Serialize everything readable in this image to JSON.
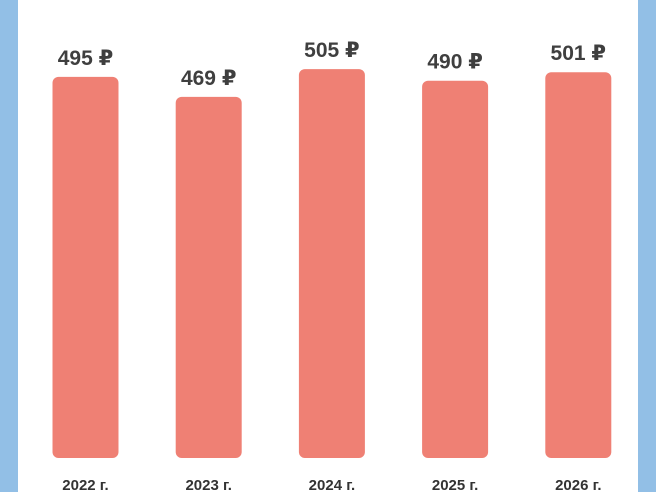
{
  "chart_data": {
    "type": "bar",
    "categories": [
      "2022 г.",
      "2023 г.",
      "2024 г.",
      "2025 г.",
      "2026 г."
    ],
    "values": [
      495,
      469,
      505,
      490,
      501
    ],
    "value_labels": [
      "495 ₽",
      "469 ₽",
      "505 ₽",
      "490 ₽",
      "501 ₽"
    ],
    "color": "#ef8074"
  }
}
